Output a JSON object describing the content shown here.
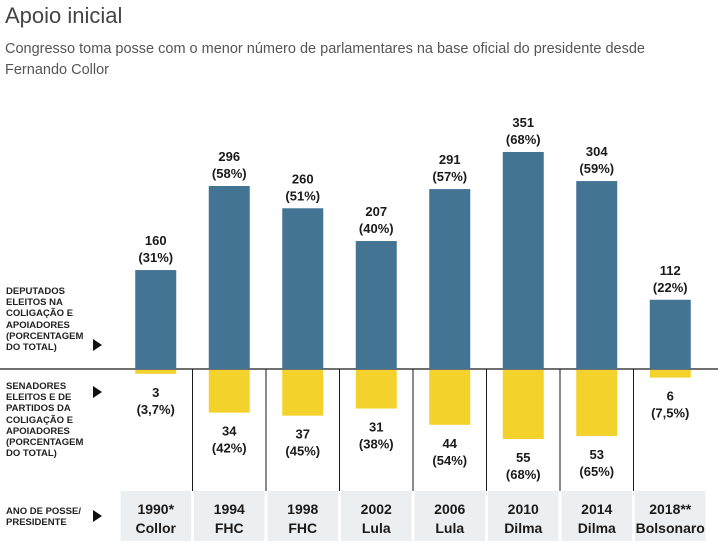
{
  "title": "Apoio inicial",
  "subtitle": "Congresso toma posse com o menor número de parlamentares na base oficial do presidente desde Fernando Collor",
  "row_labels": {
    "deputados": "Deputados eleitos na coligação e apoiadores (porcentagem do total)",
    "senadores": "Senadores eleitos e de partidos da coligação e apoiadores (porcentagem do total)",
    "ano": "Ano de posse/ presidente"
  },
  "colors": {
    "deputados": "#447493",
    "senadores": "#f3d22b",
    "footer_bg": "#eceff1"
  },
  "chart_data": {
    "type": "bar",
    "categories": [
      "1990* Collor",
      "1994 FHC",
      "1998 FHC",
      "2002 Lula",
      "2006 Lula",
      "2010 Dilma",
      "2014 Dilma",
      "2018** Bolsonaro"
    ],
    "years": [
      "1990*",
      "1994",
      "1998",
      "2002",
      "2006",
      "2010",
      "2014",
      "2018**"
    ],
    "presidents": [
      "Collor",
      "FHC",
      "FHC",
      "Lula",
      "Lula",
      "Dilma",
      "Dilma",
      "Bolsonaro"
    ],
    "series": [
      {
        "values": [
          160,
          296,
          260,
          207,
          291,
          351,
          304,
          112
        ],
        "pct_labels": [
          "(31%)",
          "(58%)",
          "(51%)",
          "(40%)",
          "(57%)",
          "(68%)",
          "(59%)",
          "(22%)"
        ]
      },
      {
        "values": [
          3,
          34,
          37,
          31,
          44,
          55,
          53,
          6
        ],
        "pct_labels": [
          "(3,7%)",
          "(42%)",
          "(45%)",
          "(38%)",
          "(54%)",
          "(68%)",
          "(65%)",
          "(7,5%)"
        ]
      }
    ],
    "senate_pct": [
      3.7,
      42,
      45,
      38,
      54,
      68,
      65,
      7.5
    ]
  }
}
